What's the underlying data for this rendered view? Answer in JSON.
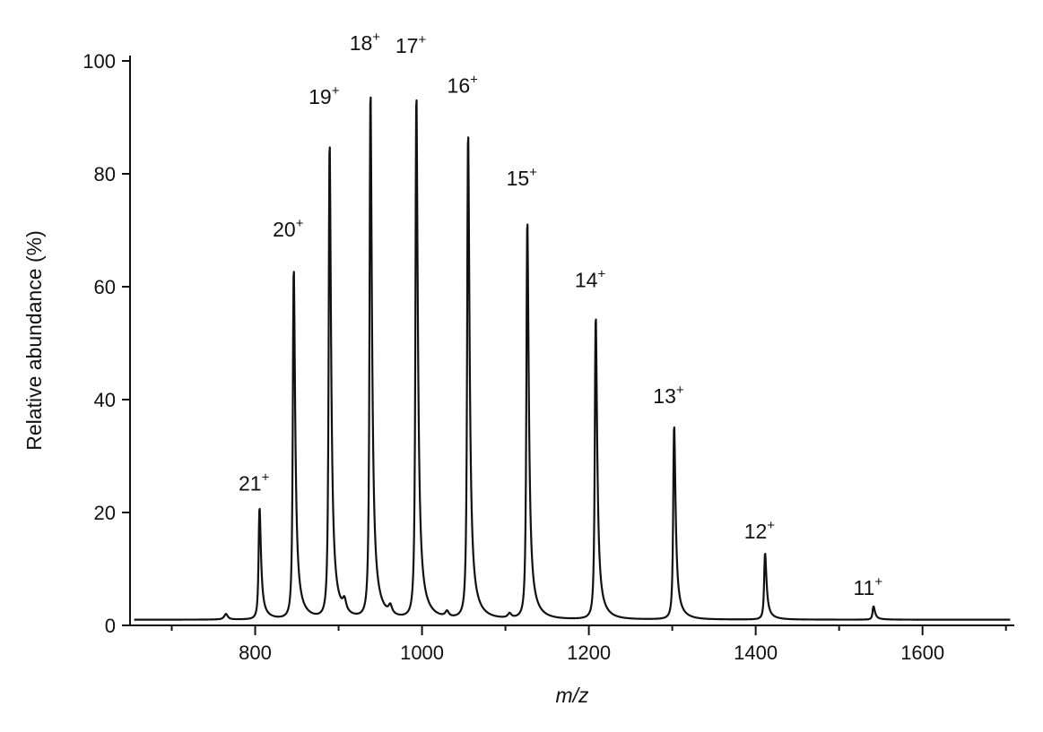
{
  "chart_data": {
    "type": "line",
    "title": "",
    "xlabel": "m/z",
    "ylabel": "Relative abundance (%)",
    "xlim": [
      650,
      1710
    ],
    "ylim": [
      0,
      100
    ],
    "xticks": [
      800,
      1000,
      1200,
      1400,
      1600
    ],
    "yticks": [
      0,
      20,
      40,
      60,
      80,
      100
    ],
    "grid": false,
    "baseline": 1,
    "peaks": [
      {
        "x": 805,
        "y": 22,
        "label": "21",
        "charge": "+"
      },
      {
        "x": 846,
        "y": 67,
        "label": "20",
        "charge": "+"
      },
      {
        "x": 889,
        "y": 90.5,
        "label": "19",
        "charge": "+"
      },
      {
        "x": 938,
        "y": 100,
        "label": "18",
        "charge": "+"
      },
      {
        "x": 993,
        "y": 99.5,
        "label": "17",
        "charge": "+"
      },
      {
        "x": 1055,
        "y": 92.5,
        "label": "16",
        "charge": "+"
      },
      {
        "x": 1126,
        "y": 76,
        "label": "15",
        "charge": "+"
      },
      {
        "x": 1208,
        "y": 58,
        "label": "14",
        "charge": "+"
      },
      {
        "x": 1302,
        "y": 37.5,
        "label": "13",
        "charge": "+"
      },
      {
        "x": 1411,
        "y": 13.5,
        "label": "12",
        "charge": "+"
      },
      {
        "x": 1541,
        "y": 3.5,
        "label": "11",
        "charge": "+"
      }
    ],
    "minor_peaks": [
      {
        "x": 765,
        "y": 2
      },
      {
        "x": 907,
        "y": 3
      },
      {
        "x": 962,
        "y": 2.5
      },
      {
        "x": 1030,
        "y": 2
      },
      {
        "x": 1105,
        "y": 1.8
      }
    ]
  }
}
